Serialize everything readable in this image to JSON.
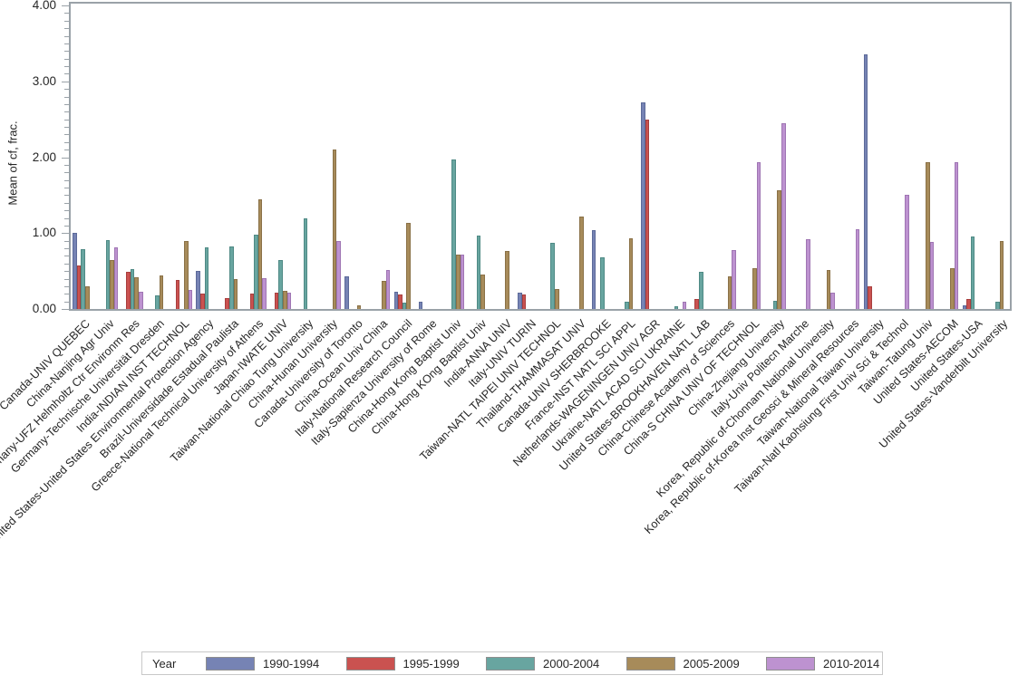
{
  "chart_data": {
    "type": "bar",
    "title": "",
    "xlabel": "",
    "ylabel": "Mean of cf, frac.",
    "ylim": [
      0,
      4
    ],
    "yticks": [
      0,
      1,
      2,
      3,
      4
    ],
    "ytick_labels": [
      "0.00",
      "1.00",
      "2.00",
      "3.00",
      "4.00"
    ],
    "minor_tick_step": 0.1,
    "grid": false,
    "legend": {
      "title": "Year",
      "position": "bottom"
    },
    "style_colors": {
      "frame": "#9aa2a8",
      "tick": "#9aa2a8",
      "text": "#262626",
      "legend_border": "#c8c8c8",
      "swatch_border": "#8f8f8f",
      "background": "#ffffff"
    },
    "categories": [
      "Canada-UNIV QUEBEC",
      "China-Nanjing Agr Univ",
      "Germany-UFZ Helmholtz Ctr Environm Res",
      "Germany-Technische Universität Dresden",
      "India-INDIAN INST TECHNOL",
      "United States-United States Environmental Protection Agency",
      "Brazil-Universidade Estadual Paulista",
      "Greece-National Technical University of Athens",
      "Japan-IWATE UNIV",
      "Taiwan-National Chiao Tung University",
      "China-Hunan University",
      "Canada-University of Toronto",
      "China-Ocean Univ China",
      "Italy-National Research Council",
      "Italy-Sapienza University of Rome",
      "China-Hong Kong Baptist Univ",
      "China-Hong KOng Baptist Univ",
      "India-ANNA UNIV",
      "Italy-UNIV TURIN",
      "Taiwan-NATL TAIPEI UNIV TECHNOL",
      "Thailand-THAMMASAT UNIV",
      "Canada-UNIV SHERBROOKE",
      "France-INST NATL SCI APPL",
      "Netherlands-WAGENINGEN UNIV AGR",
      "Ukraine-NATL ACAD SCI UKRAINE",
      "United States-BROOKHAVEN NATL LAB",
      "China-Chinese Academy of Sciences",
      "China-S CHINA UNIV OF TECHNOL",
      "China-Zhejiang University",
      "Italy-Univ Politecn Marche",
      "Korea, Republic of-Chonnam National University",
      "Korea, Republic of-Korea Inst Geosci & Mineral Resources",
      "Taiwan-National Taiwan University",
      "Taiwan-Natl Kaohsiung First Univ Sci & Technol",
      "Taiwan-Tatung Univ",
      "United States-AECOM",
      "United States-USA",
      "United States-Vanderbilt University"
    ],
    "series": [
      {
        "name": "1990-1994",
        "color": "#7683b4",
        "border": "#5c6a99",
        "values": [
          1.0,
          null,
          null,
          null,
          null,
          0.5,
          null,
          null,
          null,
          null,
          null,
          0.43,
          null,
          0.23,
          0.1,
          null,
          null,
          null,
          0.22,
          null,
          null,
          1.04,
          null,
          2.72,
          null,
          null,
          null,
          null,
          null,
          null,
          null,
          null,
          3.36,
          null,
          null,
          null,
          0.05,
          null
        ]
      },
      {
        "name": "1995-1999",
        "color": "#ca5250",
        "border": "#a83f3e",
        "values": [
          0.57,
          null,
          0.49,
          null,
          0.38,
          0.2,
          0.14,
          0.2,
          0.21,
          null,
          null,
          null,
          null,
          0.19,
          null,
          null,
          null,
          null,
          0.19,
          null,
          null,
          null,
          null,
          2.5,
          null,
          0.13,
          null,
          null,
          null,
          null,
          null,
          null,
          0.3,
          null,
          null,
          null,
          0.13,
          null
        ]
      },
      {
        "name": "2000-2004",
        "color": "#68a5a0",
        "border": "#4f8a85",
        "values": [
          0.79,
          0.91,
          0.53,
          0.18,
          null,
          0.81,
          0.83,
          0.98,
          0.64,
          1.19,
          null,
          null,
          null,
          0.08,
          null,
          1.97,
          0.97,
          null,
          null,
          0.87,
          null,
          0.68,
          0.09,
          null,
          0.04,
          0.49,
          null,
          null,
          0.11,
          null,
          null,
          null,
          null,
          null,
          null,
          null,
          0.95,
          0.09
        ]
      },
      {
        "name": "2005-2009",
        "color": "#a78b5a",
        "border": "#8a7147",
        "values": [
          0.3,
          0.65,
          0.42,
          0.44,
          0.89,
          null,
          0.4,
          1.45,
          0.24,
          null,
          2.1,
          0.05,
          0.37,
          1.13,
          null,
          0.72,
          0.45,
          0.77,
          null,
          0.26,
          1.22,
          null,
          0.93,
          null,
          null,
          null,
          0.43,
          0.54,
          1.56,
          null,
          0.51,
          null,
          null,
          null,
          1.94,
          0.54,
          null,
          0.89
        ]
      },
      {
        "name": "2010-2014",
        "color": "#bd92d0",
        "border": "#9f75b3",
        "values": [
          null,
          0.81,
          0.23,
          null,
          0.25,
          null,
          null,
          0.41,
          0.21,
          null,
          0.89,
          null,
          0.51,
          null,
          null,
          0.72,
          null,
          null,
          null,
          null,
          null,
          null,
          null,
          null,
          0.1,
          null,
          0.78,
          1.93,
          2.45,
          0.92,
          0.22,
          1.05,
          null,
          1.51,
          0.88,
          1.93,
          null,
          null
        ]
      }
    ]
  }
}
